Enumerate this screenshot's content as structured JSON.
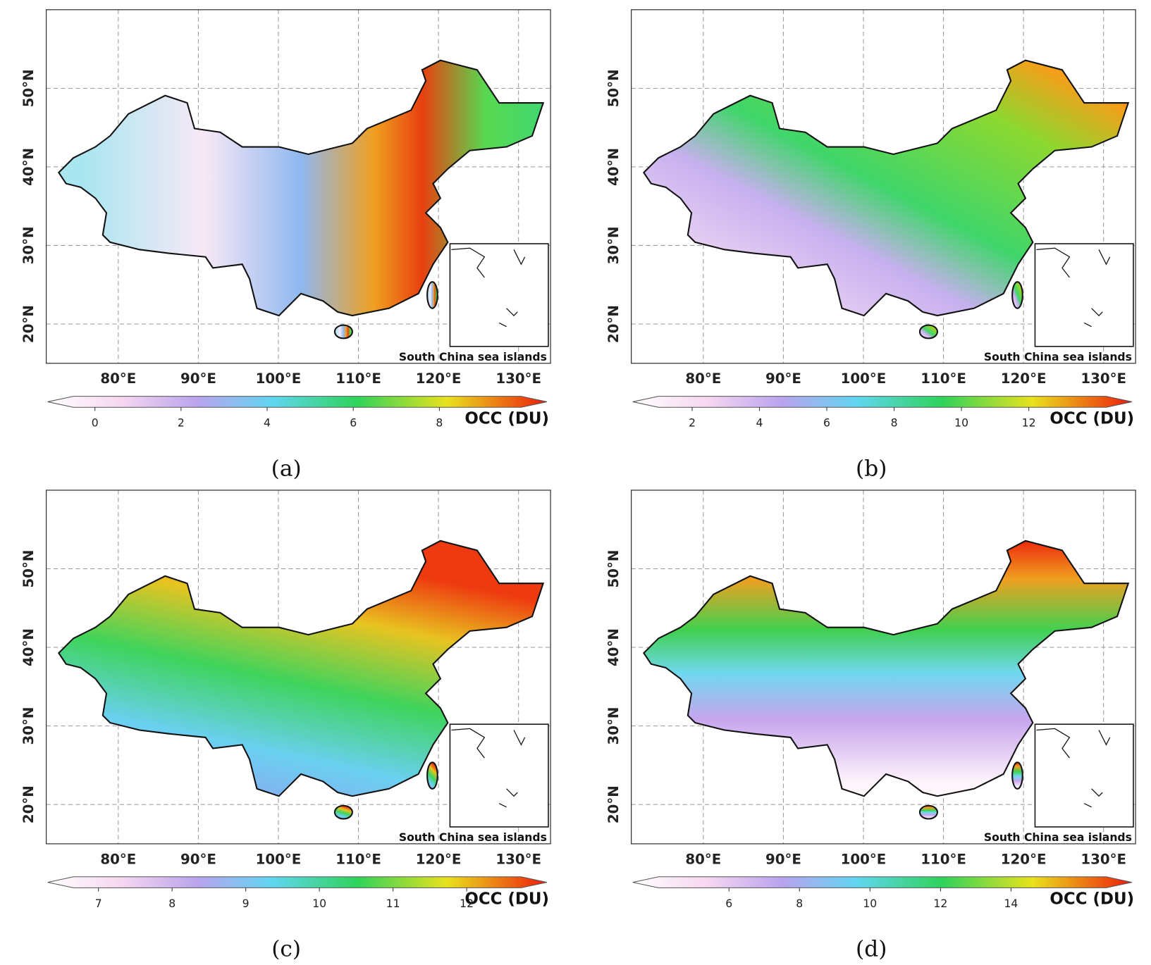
{
  "panels": [
    {
      "label": "(a)",
      "xlim": [
        71,
        134
      ],
      "ylim": [
        15,
        60
      ],
      "xticks": [
        {
          "value": 80,
          "label": "80°E"
        },
        {
          "value": 90,
          "label": "90°E"
        },
        {
          "value": 100,
          "label": "100°E"
        },
        {
          "value": 110,
          "label": "110°E"
        },
        {
          "value": 120,
          "label": "120°E"
        },
        {
          "value": 130,
          "label": "130°E"
        }
      ],
      "yticks": [
        {
          "value": 20,
          "label": "20°N"
        },
        {
          "value": 30,
          "label": "30°N"
        },
        {
          "value": 40,
          "label": "40°N"
        },
        {
          "value": 50,
          "label": "50°N"
        }
      ],
      "colorbar": {
        "label": "OCC (DU)",
        "clim": [
          -0.5,
          9.9
        ],
        "ticks": [
          0,
          2,
          4,
          6,
          8
        ]
      },
      "inset_label": "South China sea islands"
    },
    {
      "label": "(b)",
      "xlim": [
        71,
        134
      ],
      "ylim": [
        15,
        60
      ],
      "xticks": [
        {
          "value": 80,
          "label": "80°E"
        },
        {
          "value": 90,
          "label": "90°E"
        },
        {
          "value": 100,
          "label": "100°E"
        },
        {
          "value": 110,
          "label": "110°E"
        },
        {
          "value": 120,
          "label": "120°E"
        },
        {
          "value": 130,
          "label": "130°E"
        }
      ],
      "yticks": [
        {
          "value": 20,
          "label": "20°N"
        },
        {
          "value": 30,
          "label": "30°N"
        },
        {
          "value": 40,
          "label": "40°N"
        },
        {
          "value": 50,
          "label": "50°N"
        }
      ],
      "colorbar": {
        "label": "OCC (DU)",
        "clim": [
          1,
          14.3
        ],
        "ticks": [
          2,
          4,
          6,
          8,
          10,
          12
        ]
      },
      "inset_label": "South China sea islands"
    },
    {
      "label": "(c)",
      "xlim": [
        71,
        134
      ],
      "ylim": [
        15,
        60
      ],
      "xticks": [
        {
          "value": 80,
          "label": "80°E"
        },
        {
          "value": 90,
          "label": "90°E"
        },
        {
          "value": 100,
          "label": "100°E"
        },
        {
          "value": 110,
          "label": "110°E"
        },
        {
          "value": 120,
          "label": "120°E"
        },
        {
          "value": 130,
          "label": "130°E"
        }
      ],
      "yticks": [
        {
          "value": 20,
          "label": "20°N"
        },
        {
          "value": 30,
          "label": "30°N"
        },
        {
          "value": 40,
          "label": "40°N"
        },
        {
          "value": 50,
          "label": "50°N"
        }
      ],
      "colorbar": {
        "label": "OCC (DU)",
        "clim": [
          6.66,
          12.74
        ],
        "ticks": [
          7,
          8,
          9,
          10,
          11,
          12
        ]
      },
      "inset_label": "South China sea islands"
    },
    {
      "label": "(d)",
      "xlim": [
        71,
        134
      ],
      "ylim": [
        15,
        60
      ],
      "xticks": [
        {
          "value": 80,
          "label": "80°E"
        },
        {
          "value": 90,
          "label": "90°E"
        },
        {
          "value": 100,
          "label": "100°E"
        },
        {
          "value": 110,
          "label": "110°E"
        },
        {
          "value": 120,
          "label": "120°E"
        },
        {
          "value": 130,
          "label": "130°E"
        }
      ],
      "yticks": [
        {
          "value": 20,
          "label": "20°N"
        },
        {
          "value": 30,
          "label": "30°N"
        },
        {
          "value": 40,
          "label": "40°N"
        },
        {
          "value": 50,
          "label": "50°N"
        }
      ],
      "colorbar": {
        "label": "OCC (DU)",
        "clim": [
          4,
          16.7
        ],
        "ticks": [
          6,
          8,
          10,
          12,
          14
        ]
      },
      "inset_label": "South China sea islands"
    }
  ]
}
